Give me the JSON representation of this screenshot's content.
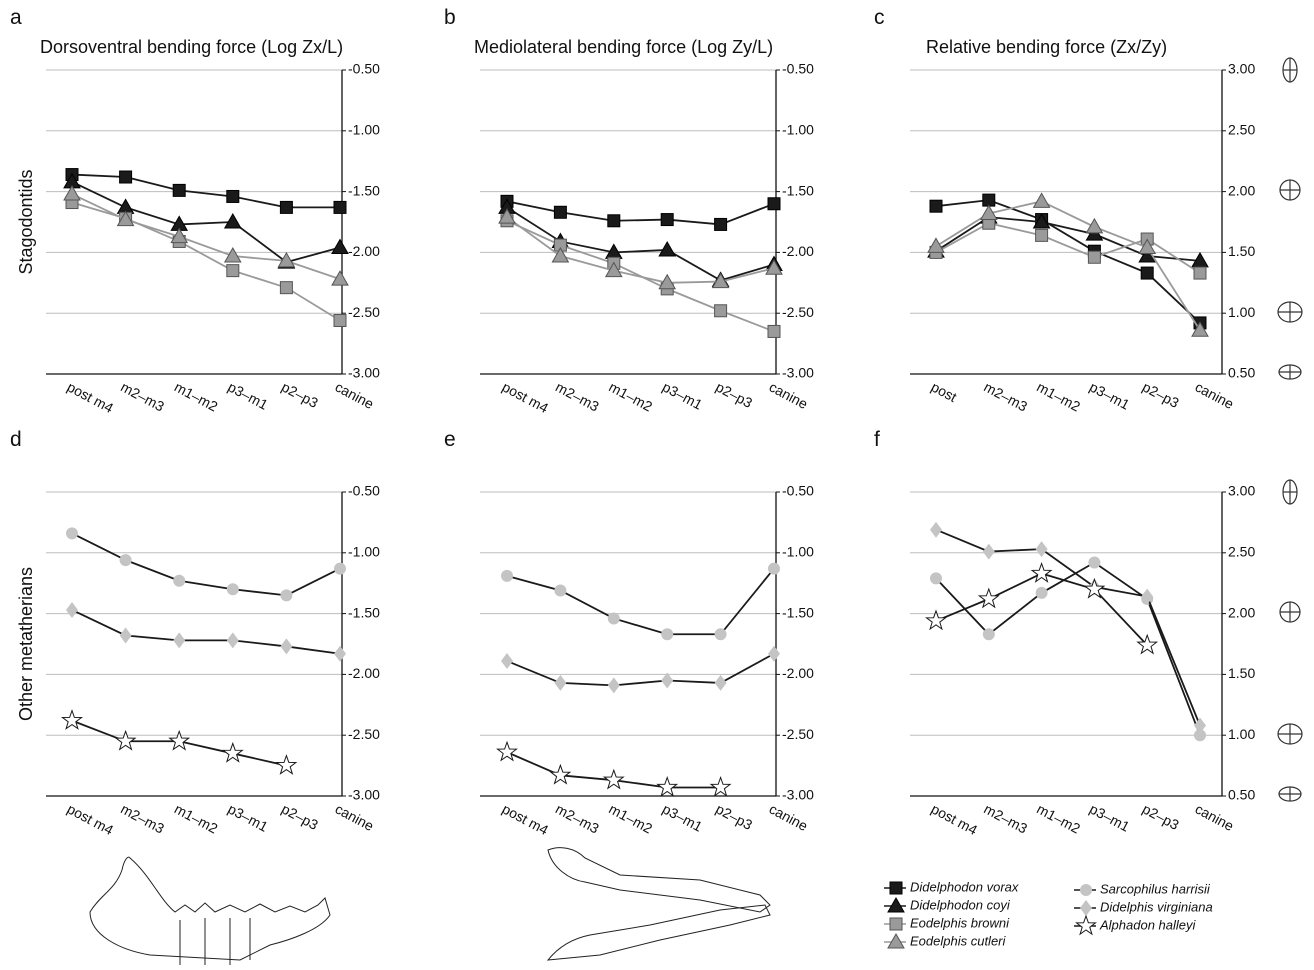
{
  "chart_data": [
    {
      "type": "line",
      "panel": "a",
      "title": "Dorsoventral bending force (Log Zx/L)",
      "ylabel": "Stagodontids",
      "categories": [
        "post m4",
        "m2–m3",
        "m1–m2",
        "p3–m1",
        "p2–p3",
        "canine"
      ],
      "ylim": [
        -3,
        -0.5
      ],
      "yticks": [
        {
          "value": -3,
          "label": "-3.00"
        },
        {
          "value": -2.5,
          "label": "-2.50"
        },
        {
          "value": -2,
          "label": "-2.00"
        },
        {
          "value": -1.5,
          "label": "-1.50"
        },
        {
          "value": -1,
          "label": "-1.00"
        },
        {
          "value": -0.5,
          "label": "-0.50"
        }
      ],
      "grid": true,
      "series": [
        {
          "name": "Didelphodon vorax",
          "marker": "square",
          "color": "#1a1a1a",
          "line_color": "#1a1a1a",
          "values": [
            -1.36,
            -1.38,
            -1.49,
            -1.54,
            -1.63,
            -1.63
          ]
        },
        {
          "name": "Didelphodon coyi",
          "marker": "triangle",
          "color": "#1a1a1a",
          "line_color": "#1a1a1a",
          "values": [
            -1.42,
            -1.63,
            -1.77,
            -1.75,
            -2.08,
            -1.96
          ]
        },
        {
          "name": "Eodelphis browni",
          "marker": "square",
          "color": "#9a9a9a",
          "line_color": "#9a9a9a",
          "values": [
            -1.59,
            -1.72,
            -1.91,
            -2.15,
            -2.29,
            -2.56
          ]
        },
        {
          "name": "Eodelphis cutleri",
          "marker": "triangle",
          "color": "#9a9a9a",
          "line_color": "#9a9a9a",
          "values": [
            -1.52,
            -1.73,
            -1.87,
            -2.03,
            -2.07,
            -2.22
          ]
        }
      ]
    },
    {
      "type": "line",
      "panel": "b",
      "title": "Mediolateral bending force (Log Zy/L)",
      "categories": [
        "post m4",
        "m2–m3",
        "m1–m2",
        "p3–m1",
        "p2–p3",
        "canine"
      ],
      "ylim": [
        -3,
        -0.5
      ],
      "yticks": [
        {
          "value": -3,
          "label": "-3.00"
        },
        {
          "value": -2.5,
          "label": "-2.50"
        },
        {
          "value": -2,
          "label": "-2.00"
        },
        {
          "value": -1.5,
          "label": "-1.50"
        },
        {
          "value": -1,
          "label": "-1.00"
        },
        {
          "value": -0.5,
          "label": "-0.50"
        }
      ],
      "grid": true,
      "series": [
        {
          "marker": "square",
          "color": "#1a1a1a",
          "line_color": "#1a1a1a",
          "values": [
            -1.58,
            -1.67,
            -1.74,
            -1.73,
            -1.77,
            -1.6
          ]
        },
        {
          "marker": "triangle",
          "color": "#1a1a1a",
          "line_color": "#1a1a1a",
          "values": [
            -1.63,
            -1.91,
            -2.0,
            -1.98,
            -2.23,
            -2.1
          ]
        },
        {
          "marker": "square",
          "color": "#9a9a9a",
          "line_color": "#9a9a9a",
          "values": [
            -1.74,
            -1.94,
            -2.09,
            -2.3,
            -2.48,
            -2.65
          ]
        },
        {
          "marker": "triangle",
          "color": "#9a9a9a",
          "line_color": "#9a9a9a",
          "values": [
            -1.71,
            -2.03,
            -2.15,
            -2.25,
            -2.24,
            -2.13
          ]
        }
      ]
    },
    {
      "type": "line",
      "panel": "c",
      "title": "Relative bending force (Zx/Zy)",
      "categories": [
        "post",
        "m2–m3",
        "m1–m2",
        "p3–m1",
        "p2–p3",
        "canine"
      ],
      "ylim": [
        0.5,
        3
      ],
      "yticks": [
        {
          "value": 0.5,
          "label": "0.50"
        },
        {
          "value": 1,
          "label": "1.00"
        },
        {
          "value": 1.5,
          "label": "1.50"
        },
        {
          "value": 2,
          "label": "2.00"
        },
        {
          "value": 2.5,
          "label": "2.50"
        },
        {
          "value": 3,
          "label": "3.00"
        }
      ],
      "grid": true,
      "series": [
        {
          "marker": "square",
          "color": "#1a1a1a",
          "line_color": "#1a1a1a",
          "values": [
            1.88,
            1.93,
            1.77,
            1.51,
            1.33,
            0.92
          ]
        },
        {
          "marker": "triangle",
          "color": "#1a1a1a",
          "line_color": "#1a1a1a",
          "values": [
            1.51,
            1.79,
            1.75,
            1.65,
            1.47,
            1.43
          ]
        },
        {
          "marker": "square",
          "color": "#9a9a9a",
          "line_color": "#9a9a9a",
          "values": [
            1.5,
            1.74,
            1.64,
            1.46,
            1.61,
            1.33
          ]
        },
        {
          "marker": "triangle",
          "color": "#9a9a9a",
          "line_color": "#9a9a9a",
          "values": [
            1.55,
            1.82,
            1.92,
            1.71,
            1.54,
            0.86
          ]
        }
      ]
    },
    {
      "type": "line",
      "panel": "d",
      "ylabel": "Other metatherians",
      "categories": [
        "post m4",
        "m2–m3",
        "m1–m2",
        "p3–m1",
        "p2–p3",
        "canine"
      ],
      "ylim": [
        -3,
        -0.5
      ],
      "yticks": [
        {
          "value": -3,
          "label": "-3.00"
        },
        {
          "value": -2.5,
          "label": "-2.50"
        },
        {
          "value": -2,
          "label": "-2.00"
        },
        {
          "value": -1.5,
          "label": "-1.50"
        },
        {
          "value": -1,
          "label": "-1.00"
        },
        {
          "value": -0.5,
          "label": "-0.50"
        }
      ],
      "grid": true,
      "series": [
        {
          "name": "Sarcophilus harrisii",
          "marker": "circle",
          "color": "#c4c4c4",
          "line_color": "#1a1a1a",
          "values": [
            -0.84,
            -1.06,
            -1.23,
            -1.3,
            -1.35,
            -1.13
          ]
        },
        {
          "name": "Didelphis virginiana",
          "marker": "diamond",
          "color": "#c4c4c4",
          "line_color": "#1a1a1a",
          "values": [
            -1.47,
            -1.68,
            -1.72,
            -1.72,
            -1.77,
            -1.83
          ]
        },
        {
          "name": "Alphadon halleyi",
          "marker": "star",
          "color": "#ffffff",
          "line_color": "#1a1a1a",
          "values": [
            -2.38,
            -2.55,
            -2.55,
            -2.65,
            -2.75,
            null
          ]
        }
      ]
    },
    {
      "type": "line",
      "panel": "e",
      "categories": [
        "post m4",
        "m2–m3",
        "m1–m2",
        "p3–m1",
        "p2–p3",
        "canine"
      ],
      "ylim": [
        -3,
        -0.5
      ],
      "yticks": [
        {
          "value": -3,
          "label": "-3.00"
        },
        {
          "value": -2.5,
          "label": "-2.50"
        },
        {
          "value": -2,
          "label": "-2.00"
        },
        {
          "value": -1.5,
          "label": "-1.50"
        },
        {
          "value": -1,
          "label": "-1.00"
        },
        {
          "value": -0.5,
          "label": "-0.50"
        }
      ],
      "grid": true,
      "series": [
        {
          "marker": "circle",
          "color": "#c4c4c4",
          "line_color": "#1a1a1a",
          "values": [
            -1.19,
            -1.31,
            -1.54,
            -1.67,
            -1.67,
            -1.13
          ]
        },
        {
          "marker": "diamond",
          "color": "#c4c4c4",
          "line_color": "#1a1a1a",
          "values": [
            -1.89,
            -2.07,
            -2.09,
            -2.05,
            -2.07,
            -1.83
          ]
        },
        {
          "marker": "star",
          "color": "#ffffff",
          "line_color": "#1a1a1a",
          "values": [
            -2.64,
            -2.83,
            -2.87,
            -2.93,
            -2.93,
            null
          ]
        }
      ]
    },
    {
      "type": "line",
      "panel": "f",
      "categories": [
        "post m4",
        "m2–m3",
        "m1–m2",
        "p3–m1",
        "p2–p3",
        "canine"
      ],
      "ylim": [
        0.5,
        3
      ],
      "yticks": [
        {
          "value": 0.5,
          "label": "0.50"
        },
        {
          "value": 1,
          "label": "1.00"
        },
        {
          "value": 1.5,
          "label": "1.50"
        },
        {
          "value": 2,
          "label": "2.00"
        },
        {
          "value": 2.5,
          "label": "2.50"
        },
        {
          "value": 3,
          "label": "3.00"
        }
      ],
      "grid": true,
      "series": [
        {
          "marker": "circle",
          "color": "#c4c4c4",
          "line_color": "#1a1a1a",
          "values": [
            2.29,
            1.83,
            2.17,
            2.42,
            2.12,
            1.0
          ]
        },
        {
          "marker": "diamond",
          "color": "#c4c4c4",
          "line_color": "#1a1a1a",
          "values": [
            2.69,
            2.51,
            2.53,
            2.22,
            2.14,
            1.08
          ]
        },
        {
          "marker": "star",
          "color": "#ffffff",
          "line_color": "#1a1a1a",
          "values": [
            1.94,
            2.12,
            2.33,
            2.2,
            1.74,
            null
          ]
        }
      ]
    }
  ]
}
